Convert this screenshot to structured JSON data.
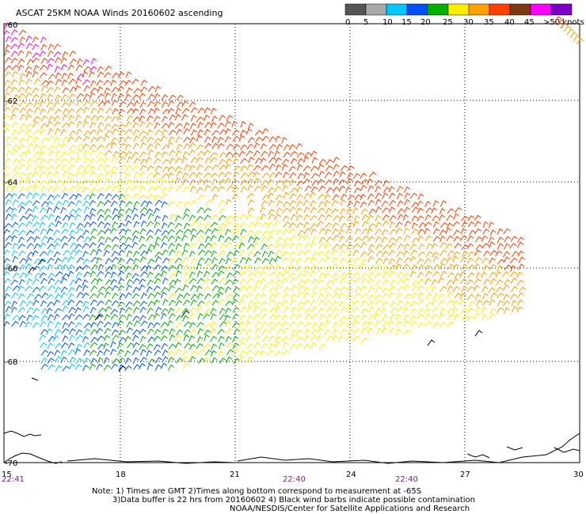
{
  "title": "ASCAT 25KM NOAA Winds 20160602 ascending",
  "legend": {
    "ticks": [
      "0",
      "5",
      "10",
      "15",
      "20",
      "25",
      "30",
      "35",
      "40",
      "45",
      ">50 knots"
    ],
    "colors": [
      "#555555",
      "#a8a8a8",
      "#00c8ff",
      "#0050ff",
      "#00b000",
      "#ffee00",
      "#ffa000",
      "#ff4000",
      "#7a3a10",
      "#ff00ff",
      "#7a00c8"
    ]
  },
  "axes": {
    "lat_labels": [
      "-60",
      "-62",
      "-64",
      "-66",
      "-68",
      "-70"
    ],
    "lon_labels": [
      "15",
      "18",
      "21",
      "24",
      "27",
      "30"
    ]
  },
  "times": [
    "22:41",
    "22:40",
    "22:40"
  ],
  "notes": [
    "Note: 1) Times are GMT 2)Times along bottom correspond to measurement at -65S",
    "3)Data buffer is 22 hrs from 20160602 4) Black wind barbs indicate possible contamination",
    "NOAA/NESDIS/Center for Satellite Applications and Research"
  ]
}
